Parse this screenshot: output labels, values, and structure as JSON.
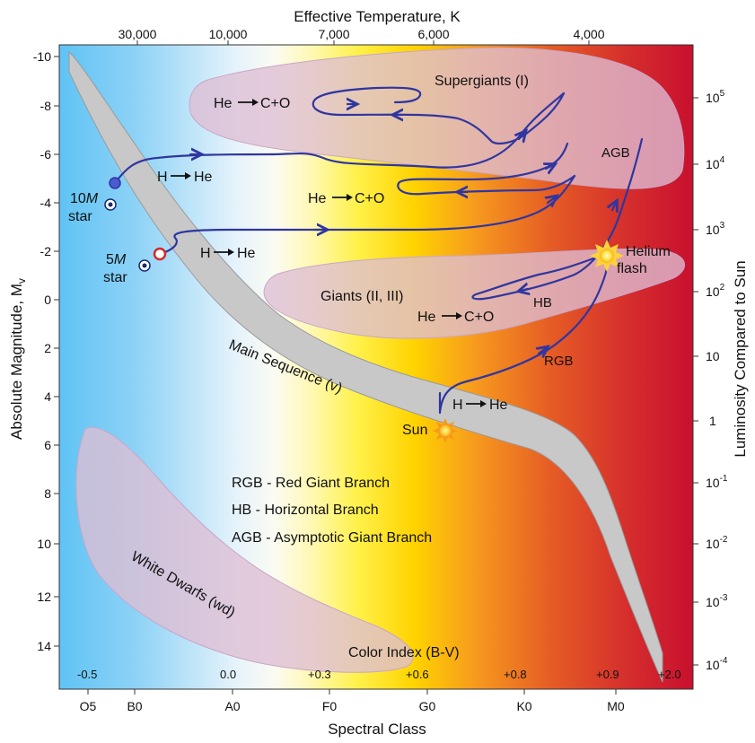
{
  "top_axis": {
    "title": "Effective Temperature, K",
    "ticks": [
      "30,000",
      "10,000",
      "7,000",
      "6,000",
      "4,000"
    ]
  },
  "bottom_axis": {
    "title": "Spectral Class",
    "ticks": [
      "O5",
      "B0",
      "A0",
      "F0",
      "G0",
      "K0",
      "M0"
    ]
  },
  "left_axis": {
    "title": "Absolute Magnitude, M",
    "title_sub": "v",
    "ticks": [
      "-10",
      "-8",
      "-6",
      "-4",
      "-2",
      "0",
      "2",
      "4",
      "6",
      "8",
      "10",
      "12",
      "14"
    ]
  },
  "right_axis": {
    "title": "Luminosity Compared to Sun",
    "ticks": [
      {
        "base": "10",
        "exp": "5"
      },
      {
        "base": "10",
        "exp": "4"
      },
      {
        "base": "10",
        "exp": "3"
      },
      {
        "base": "10",
        "exp": "2"
      },
      {
        "base": "10",
        "exp": ""
      },
      {
        "base": "1",
        "exp": ""
      },
      {
        "base": "10",
        "exp": "-1"
      },
      {
        "base": "10",
        "exp": "-2"
      },
      {
        "base": "10",
        "exp": "-3"
      },
      {
        "base": "10",
        "exp": "-4"
      }
    ]
  },
  "color_index": {
    "title": "Color Index (B-V)",
    "values": [
      "-0.5",
      "0.0",
      "+0.3",
      "+0.6",
      "+0.8",
      "+0.9",
      "+2.0"
    ]
  },
  "regions": {
    "supergiants": "Supergiants (I)",
    "giants": "Giants (II, III)",
    "main_sequence": "Main Sequence (v)",
    "white_dwarfs": "White Dwarfs (wd)"
  },
  "labels": {
    "he_co_1": "He",
    "he_co_1b": "C+O",
    "he_co_2": "He",
    "he_co_2b": "C+O",
    "he_co_3": "He",
    "he_co_3b": "C+O",
    "h_he_1": "H",
    "h_he_1b": "He",
    "h_he_2": "H",
    "h_he_2b": "He",
    "h_he_3": "H",
    "h_he_3b": "He",
    "agb": "AGB",
    "hb": "HB",
    "rgb": "RGB",
    "sun": "Sun",
    "helium_flash_1": "Helium",
    "helium_flash_2": "flash",
    "star10_mass": "10",
    "star10_m": "M",
    "star10_word": "star",
    "star5_mass": "5",
    "star5_m": "M",
    "star5_word": "star"
  },
  "legend": [
    "RGB - Red Giant Branch",
    "HB - Horizontal Branch",
    "AGB - Asymptotic Giant Branch"
  ],
  "colors": {
    "track": "#2f36a0",
    "region_fill": "#dcbcd3",
    "main_sequence_fill": "#c8c8c8"
  }
}
